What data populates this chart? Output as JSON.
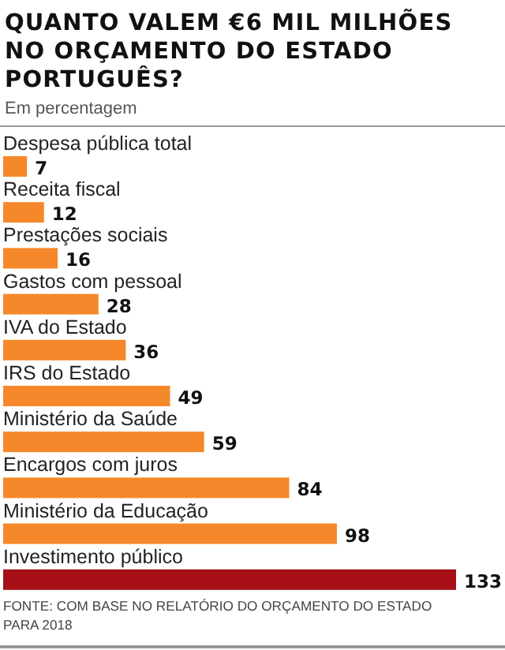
{
  "chart_data": {
    "type": "bar",
    "orientation": "horizontal",
    "data_labels": true,
    "title": "QUANTO VALEM €6 MIL MILHÕES NO ORÇAMENTO DO ESTADO PORTUGUÊS?",
    "subtitle": "Em percentagem",
    "categories": [
      "Despesa pública total",
      "Receita fiscal",
      "Prestações sociais",
      "Gastos com pessoal",
      "IVA do Estado",
      "IRS do Estado",
      "Ministério da Saúde",
      "Encargos com juros",
      "Ministério da Educação",
      "Investimento público"
    ],
    "values": [
      7,
      12,
      16,
      28,
      36,
      49,
      59,
      84,
      98,
      133
    ],
    "colors": [
      "#f5882a",
      "#f5882a",
      "#f5882a",
      "#f5882a",
      "#f5882a",
      "#f5882a",
      "#f5882a",
      "#f5882a",
      "#f5882a",
      "#a50f15"
    ],
    "annotations": [
      "FONTE: COM BASE NO RELATÓRIO DO ORÇAMENTO DO ESTADO PARA 2018"
    ]
  }
}
